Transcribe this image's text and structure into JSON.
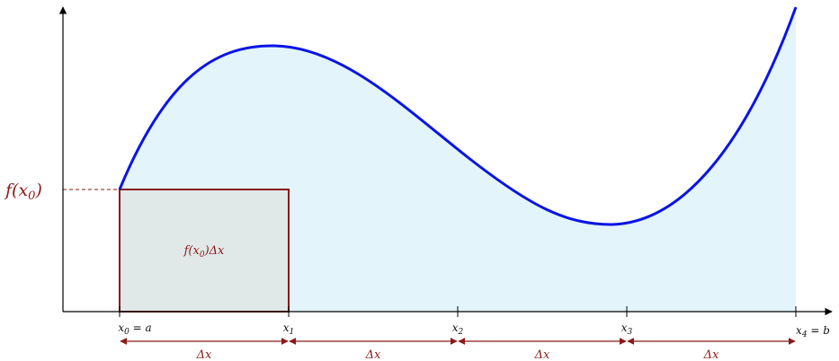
{
  "colors": {
    "curve": "#0a14e6",
    "area_fill": "#e3f4fb",
    "rect_stroke": "#8b1a1a",
    "rect_fill": "#e1e8e8",
    "axis": "#000000",
    "annotation": "#8b1a1a"
  },
  "labels": {
    "f_x0": {
      "base": "f(x",
      "sub": "0",
      "tail": ")"
    },
    "rect_label": {
      "base": "f(x",
      "sub": "0",
      "tail": ")Δx"
    },
    "ticks": [
      {
        "base": "x",
        "sub": "0",
        "tail": " = a"
      },
      {
        "base": "x",
        "sub": "1",
        "tail": ""
      },
      {
        "base": "x",
        "sub": "2",
        "tail": ""
      },
      {
        "base": "x",
        "sub": "3",
        "tail": ""
      },
      {
        "base": "x",
        "sub": "4",
        "tail": " = b"
      }
    ],
    "delta_x": "Δx"
  }
}
